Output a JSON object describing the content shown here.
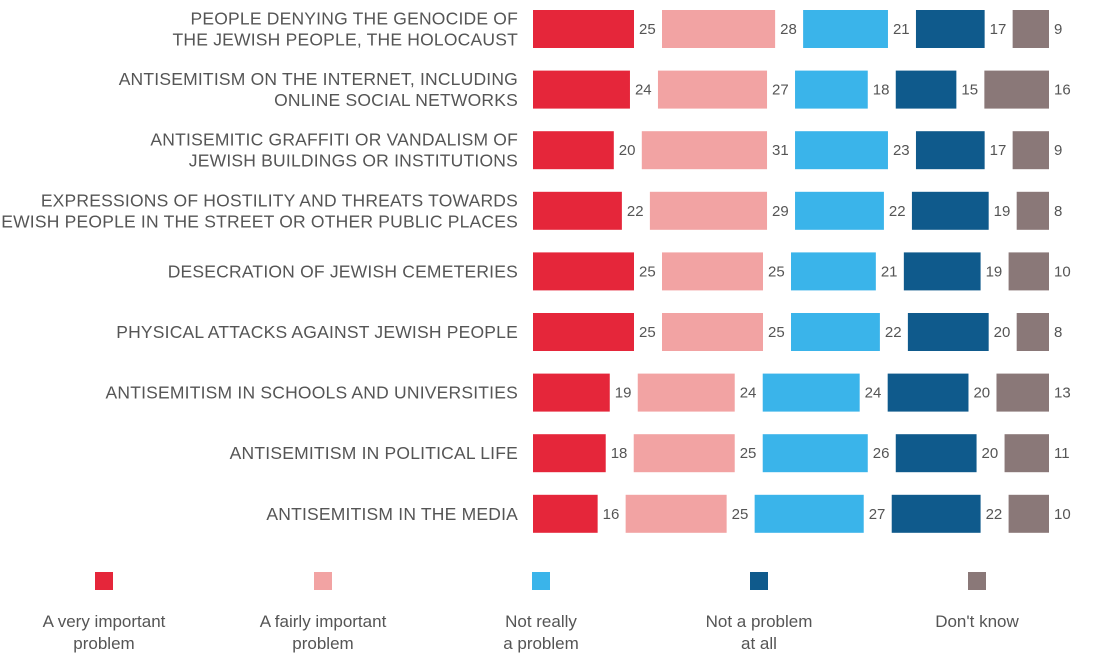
{
  "chart_data": {
    "type": "bar",
    "orientation": "horizontal",
    "stacking": "grouped-segments",
    "categories": [
      [
        "PEOPLE DENYING THE GENOCIDE OF",
        "THE JEWISH PEOPLE, THE HOLOCAUST"
      ],
      [
        "ANTISEMITISM ON THE INTERNET, INCLUDING",
        "ONLINE SOCIAL NETWORKS"
      ],
      [
        "ANTISEMITIC GRAFFITI OR VANDALISM OF",
        "JEWISH BUILDINGS OR INSTITUTIONS"
      ],
      [
        "EXPRESSIONS OF HOSTILITY AND THREATS TOWARDS",
        "JEWISH PEOPLE IN THE STREET OR OTHER PUBLIC PLACES"
      ],
      [
        "DESECRATION OF JEWISH CEMETERIES"
      ],
      [
        "PHYSICAL ATTACKS AGAINST JEWISH PEOPLE"
      ],
      [
        "ANTISEMITISM IN SCHOOLS AND UNIVERSITIES"
      ],
      [
        "ANTISEMITISM IN POLITICAL LIFE"
      ],
      [
        "ANTISEMITISM IN THE MEDIA"
      ]
    ],
    "series": [
      {
        "name": [
          "A very important",
          "problem"
        ],
        "color": "#e5263a",
        "values": [
          25,
          24,
          20,
          22,
          25,
          25,
          19,
          18,
          16
        ]
      },
      {
        "name": [
          "A fairly important",
          "problem"
        ],
        "color": "#f2a3a3",
        "values": [
          28,
          27,
          31,
          29,
          25,
          25,
          24,
          25,
          25
        ]
      },
      {
        "name": [
          "Not really",
          "a problem"
        ],
        "color": "#3ab4ea",
        "values": [
          21,
          18,
          23,
          22,
          21,
          22,
          24,
          26,
          27
        ]
      },
      {
        "name": [
          "Not a problem",
          "at all"
        ],
        "color": "#0f5a8c",
        "values": [
          17,
          15,
          17,
          19,
          19,
          20,
          20,
          20,
          22
        ]
      },
      {
        "name": [
          "Don't know"
        ],
        "color": "#8a7878",
        "values": [
          9,
          16,
          9,
          8,
          10,
          8,
          13,
          11,
          10
        ]
      }
    ],
    "legend_position": "bottom",
    "grid": false
  }
}
